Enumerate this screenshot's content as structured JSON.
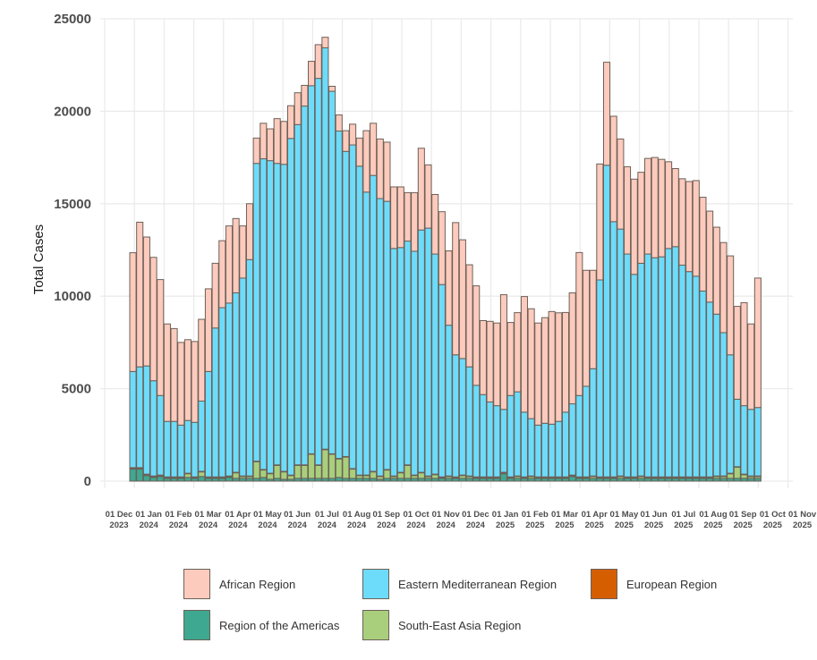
{
  "chart_data": {
    "type": "bar",
    "stacked": true,
    "title": "",
    "xlabel": "",
    "ylabel": "Total Cases",
    "ylim": [
      0,
      25000
    ],
    "yticks": [
      0,
      5000,
      10000,
      15000,
      20000,
      25000
    ],
    "ytick_labels": [
      "0",
      "5000",
      "10000",
      "15000",
      "20000",
      "25000"
    ],
    "grid": true,
    "legend_position": "bottom",
    "xtick_labels": [
      [
        "01 Dec",
        "2023"
      ],
      [
        "01 Jan",
        "2024"
      ],
      [
        "01 Feb",
        "2024"
      ],
      [
        "01 Mar",
        "2024"
      ],
      [
        "01 Apr",
        "2024"
      ],
      [
        "01 May",
        "2024"
      ],
      [
        "01 Jun",
        "2024"
      ],
      [
        "01 Jul",
        "2024"
      ],
      [
        "01 Aug",
        "2024"
      ],
      [
        "01 Sep",
        "2024"
      ],
      [
        "01 Oct",
        "2024"
      ],
      [
        "01 Nov",
        "2024"
      ],
      [
        "01 Dec",
        "2024"
      ],
      [
        "01 Jan",
        "2025"
      ],
      [
        "01 Feb",
        "2025"
      ],
      [
        "01 Mar",
        "2025"
      ],
      [
        "01 Apr",
        "2025"
      ],
      [
        "01 May",
        "2025"
      ],
      [
        "01 Jun",
        "2025"
      ],
      [
        "01 Jul",
        "2025"
      ],
      [
        "01 Aug",
        "2025"
      ],
      [
        "01 Sep",
        "2025"
      ],
      [
        "01 Oct",
        "2025"
      ],
      [
        "01 Nov",
        "2025"
      ]
    ],
    "x_unit": "week (weekly bars starting mid-December 2023)",
    "series": [
      {
        "name": "Region of the Americas",
        "color": "#3fa891",
        "values": [
          650,
          650,
          300,
          200,
          250,
          150,
          150,
          150,
          200,
          150,
          250,
          150,
          150,
          150,
          200,
          150,
          150,
          150,
          150,
          200,
          100,
          150,
          100,
          100,
          150,
          150,
          150,
          150,
          150,
          150,
          200,
          150,
          150,
          150,
          150,
          150,
          100,
          150,
          150,
          150,
          150,
          150,
          150,
          150,
          150,
          150,
          150,
          150,
          150,
          150,
          150,
          150,
          150,
          150,
          400,
          150,
          150,
          150,
          150,
          150,
          150,
          150,
          150,
          150,
          250,
          150,
          150,
          150,
          150,
          150,
          150,
          150,
          150,
          150,
          150,
          150,
          150,
          150,
          150,
          150,
          150,
          150,
          150,
          150,
          150,
          150,
          150,
          150,
          150,
          150,
          150,
          150
        ]
      },
      {
        "name": "South-East Asia Region",
        "color": "#a9cf7c",
        "values": [
          50,
          50,
          50,
          50,
          50,
          50,
          50,
          50,
          200,
          50,
          250,
          50,
          50,
          50,
          50,
          300,
          100,
          100,
          900,
          400,
          300,
          700,
          400,
          200,
          700,
          700,
          1300,
          700,
          1550,
          1300,
          1000,
          1150,
          500,
          150,
          150,
          350,
          150,
          450,
          100,
          300,
          700,
          150,
          300,
          100,
          200,
          50,
          100,
          50,
          150,
          100,
          50,
          50,
          50,
          50,
          50,
          50,
          100,
          50,
          100,
          50,
          50,
          50,
          50,
          50,
          50,
          50,
          50,
          100,
          50,
          50,
          50,
          100,
          50,
          50,
          100,
          50,
          50,
          50,
          50,
          50,
          50,
          50,
          50,
          50,
          50,
          100,
          100,
          250,
          600,
          200,
          100,
          100
        ]
      },
      {
        "name": "European Region",
        "color": "#d55e00",
        "values": [
          30,
          30,
          30,
          30,
          30,
          30,
          30,
          30,
          30,
          30,
          30,
          30,
          30,
          30,
          30,
          30,
          30,
          30,
          30,
          30,
          30,
          30,
          30,
          30,
          30,
          30,
          30,
          30,
          30,
          30,
          30,
          30,
          30,
          30,
          30,
          30,
          30,
          30,
          30,
          30,
          30,
          30,
          30,
          30,
          30,
          30,
          30,
          30,
          30,
          30,
          30,
          30,
          30,
          30,
          30,
          30,
          30,
          30,
          30,
          30,
          30,
          30,
          30,
          30,
          30,
          30,
          30,
          30,
          30,
          30,
          30,
          30,
          30,
          30,
          30,
          30,
          30,
          30,
          30,
          30,
          30,
          30,
          30,
          30,
          30,
          30,
          30,
          30,
          30,
          30,
          30,
          30
        ]
      },
      {
        "name": "Eastern Mediterranean Region",
        "color": "#6ddcfb",
        "values": [
          5200,
          5450,
          5850,
          5150,
          4300,
          3000,
          3000,
          2800,
          2850,
          2950,
          3800,
          5700,
          8050,
          9150,
          9350,
          9700,
          10700,
          11700,
          16100,
          16800,
          16900,
          16300,
          16600,
          18200,
          18400,
          19400,
          19900,
          20900,
          21700,
          19600,
          17700,
          16500,
          17500,
          16700,
          15300,
          16000,
          15000,
          14500,
          12300,
          12150,
          12100,
          12100,
          13100,
          13400,
          11900,
          10400,
          8150,
          6600,
          6300,
          5900,
          4950,
          4450,
          4050,
          3850,
          3400,
          4400,
          4550,
          3500,
          3100,
          2800,
          2900,
          2850,
          3000,
          3500,
          3850,
          4400,
          4900,
          5800,
          10650,
          16850,
          13800,
          13350,
          12050,
          10950,
          11500,
          12050,
          11850,
          11900,
          12350,
          12450,
          11450,
          11100,
          10850,
          10050,
          9450,
          8750,
          7750,
          6400,
          3650,
          3700,
          3600,
          3700
        ]
      },
      {
        "name": "African Region",
        "color": "#fdcbbd",
        "values": [
          6420,
          7820,
          6970,
          6670,
          6270,
          5270,
          5020,
          4470,
          4370,
          4370,
          4420,
          4470,
          3500,
          3620,
          4170,
          4020,
          2820,
          3020,
          1370,
          1920,
          1720,
          2420,
          2320,
          1770,
          1720,
          1120,
          1320,
          1820,
          570,
          270,
          870,
          1120,
          1120,
          1520,
          3320,
          2820,
          3220,
          3200,
          3330,
          3280,
          2620,
          3170,
          4420,
          3420,
          3220,
          3940,
          4020,
          7150,
          6420,
          5520,
          5380,
          4000,
          4360,
          4470,
          6200,
          3950,
          4280,
          6250,
          5940,
          5520,
          5710,
          6090,
          5870,
          5390,
          6000,
          7730,
          6270,
          5320,
          6270,
          5570,
          5700,
          4870,
          4720,
          5150,
          4920,
          5170,
          5420,
          5270,
          4690,
          4220,
          4670,
          4870,
          5170,
          5070,
          4920,
          4700,
          4870,
          5350,
          5020,
          5570,
          4620,
          7000
        ]
      }
    ]
  },
  "legend": {
    "items": [
      {
        "label": "African Region",
        "color": "#fdcbbd"
      },
      {
        "label": "Eastern Mediterranean Region",
        "color": "#6ddcfb"
      },
      {
        "label": "European Region",
        "color": "#d55e00"
      },
      {
        "label": "Region of the Americas",
        "color": "#3fa891"
      },
      {
        "label": "South-East Asia Region",
        "color": "#a9cf7c"
      }
    ]
  }
}
